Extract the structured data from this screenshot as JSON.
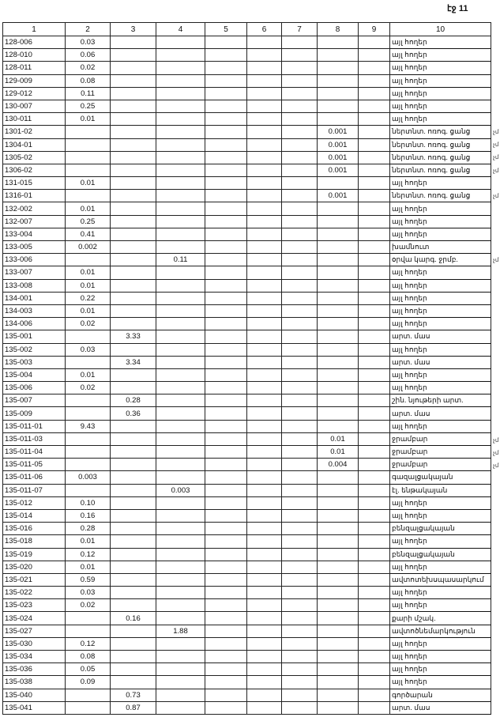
{
  "page_label": "էջ 11",
  "columns": [
    "1",
    "2",
    "3",
    "4",
    "5",
    "6",
    "7",
    "8",
    "9",
    "10"
  ],
  "rows": [
    {
      "c": [
        "128-006",
        "0.03",
        "",
        "",
        "",
        "",
        "",
        "",
        "",
        "այլ հողեր"
      ]
    },
    {
      "c": [
        "128-010",
        "0.06",
        "",
        "",
        "",
        "",
        "",
        "",
        "",
        "այլ հողեր"
      ]
    },
    {
      "c": [
        "128-011",
        "0.02",
        "",
        "",
        "",
        "",
        "",
        "",
        "",
        "այլ հողեր"
      ]
    },
    {
      "c": [
        "129-009",
        "0.08",
        "",
        "",
        "",
        "",
        "",
        "",
        "",
        "այլ հողեր"
      ]
    },
    {
      "c": [
        "129-012",
        "0.11",
        "",
        "",
        "",
        "",
        "",
        "",
        "",
        "այլ հողեր"
      ]
    },
    {
      "c": [
        "130-007",
        "0.25",
        "",
        "",
        "",
        "",
        "",
        "",
        "",
        "այլ հողեր"
      ]
    },
    {
      "c": [
        "130-011",
        "0.01",
        "",
        "",
        "",
        "",
        "",
        "",
        "",
        "այլ հողեր"
      ]
    },
    {
      "c": [
        "1301-02",
        "",
        "",
        "",
        "",
        "",
        "",
        "0.001",
        "",
        "ներտնտ. ոռոգ. ցանց"
      ],
      "note": "չմ"
    },
    {
      "c": [
        "1304-01",
        "",
        "",
        "",
        "",
        "",
        "",
        "0.001",
        "",
        "ներտնտ. ոռոգ. ցանց"
      ],
      "note": "չմ"
    },
    {
      "c": [
        "1305-02",
        "",
        "",
        "",
        "",
        "",
        "",
        "0.001",
        "",
        "ներտնտ. ոռոգ. ցանց"
      ],
      "note": "չմ"
    },
    {
      "c": [
        "1306-02",
        "",
        "",
        "",
        "",
        "",
        "",
        "0.001",
        "",
        "ներտնտ. ոռոգ. ցանց"
      ],
      "note": "չմ"
    },
    {
      "c": [
        "131-015",
        "0.01",
        "",
        "",
        "",
        "",
        "",
        "",
        "",
        "այլ հողեր"
      ]
    },
    {
      "c": [
        "1316-01",
        "",
        "",
        "",
        "",
        "",
        "",
        "0.001",
        "",
        "ներտնտ. ոռոգ. ցանց"
      ],
      "note": "չմ"
    },
    {
      "c": [
        "132-002",
        "0.01",
        "",
        "",
        "",
        "",
        "",
        "",
        "",
        "այլ հողեր"
      ]
    },
    {
      "c": [
        "132-007",
        "0.25",
        "",
        "",
        "",
        "",
        "",
        "",
        "",
        "այլ հողեր"
      ]
    },
    {
      "c": [
        "133-004",
        "0.41",
        "",
        "",
        "",
        "",
        "",
        "",
        "",
        "այլ հողեր"
      ]
    },
    {
      "c": [
        "133-005",
        "0.002",
        "",
        "",
        "",
        "",
        "",
        "",
        "",
        "խամնուտ"
      ]
    },
    {
      "c": [
        "133-006",
        "",
        "",
        "0.11",
        "",
        "",
        "",
        "",
        "",
        "օրվա կարգ. ջրմբ."
      ],
      "note": "չմ"
    },
    {
      "c": [
        "133-007",
        "0.01",
        "",
        "",
        "",
        "",
        "",
        "",
        "",
        "այլ հողեր"
      ]
    },
    {
      "c": [
        "133-008",
        "0.01",
        "",
        "",
        "",
        "",
        "",
        "",
        "",
        "այլ հողեր"
      ]
    },
    {
      "c": [
        "134-001",
        "0.22",
        "",
        "",
        "",
        "",
        "",
        "",
        "",
        "այլ հողեր"
      ]
    },
    {
      "c": [
        "134-003",
        "0.01",
        "",
        "",
        "",
        "",
        "",
        "",
        "",
        "այլ հողեր"
      ]
    },
    {
      "c": [
        "134-006",
        "0.02",
        "",
        "",
        "",
        "",
        "",
        "",
        "",
        "այլ հողեր"
      ]
    },
    {
      "c": [
        "135-001",
        "",
        "3.33",
        "",
        "",
        "",
        "",
        "",
        "",
        "արտ. մաս"
      ]
    },
    {
      "c": [
        "135-002",
        "0.03",
        "",
        "",
        "",
        "",
        "",
        "",
        "",
        "այլ հողեր"
      ]
    },
    {
      "c": [
        "135-003",
        "",
        "3.34",
        "",
        "",
        "",
        "",
        "",
        "",
        "արտ. մաս"
      ]
    },
    {
      "c": [
        "135-004",
        "0.01",
        "",
        "",
        "",
        "",
        "",
        "",
        "",
        "այլ հողեր"
      ]
    },
    {
      "c": [
        "135-006",
        "0.02",
        "",
        "",
        "",
        "",
        "",
        "",
        "",
        "այլ հողեր"
      ]
    },
    {
      "c": [
        "135-007",
        "",
        "0.28",
        "",
        "",
        "",
        "",
        "",
        "",
        "շին. նյութերի արտ."
      ]
    },
    {
      "c": [
        "135-009",
        "",
        "0.36",
        "",
        "",
        "",
        "",
        "",
        "",
        "արտ. մաս"
      ]
    },
    {
      "c": [
        "135-011-01",
        "9.43",
        "",
        "",
        "",
        "",
        "",
        "",
        "",
        "այլ հողեր"
      ]
    },
    {
      "c": [
        "135-011-03",
        "",
        "",
        "",
        "",
        "",
        "",
        "0.01",
        "",
        "ջրամբար"
      ],
      "note": "չմ"
    },
    {
      "c": [
        "135-011-04",
        "",
        "",
        "",
        "",
        "",
        "",
        "0.01",
        "",
        "ջրամբար"
      ],
      "note": "չմ"
    },
    {
      "c": [
        "135-011-05",
        "",
        "",
        "",
        "",
        "",
        "",
        "0.004",
        "",
        "ջրամբար"
      ],
      "note": "չմ"
    },
    {
      "c": [
        "135-011-06",
        "0.003",
        "",
        "",
        "",
        "",
        "",
        "",
        "",
        "գազալցակայան"
      ]
    },
    {
      "c": [
        "135-011-07",
        "",
        "",
        "0.003",
        "",
        "",
        "",
        "",
        "",
        "էլ. ենթակայան"
      ]
    },
    {
      "c": [
        "135-012",
        "0.10",
        "",
        "",
        "",
        "",
        "",
        "",
        "",
        "այլ հողեր"
      ]
    },
    {
      "c": [
        "135-014",
        "0.16",
        "",
        "",
        "",
        "",
        "",
        "",
        "",
        "այլ հողեր"
      ]
    },
    {
      "c": [
        "135-016",
        "0.28",
        "",
        "",
        "",
        "",
        "",
        "",
        "",
        "բենզալցակայան"
      ]
    },
    {
      "c": [
        "135-018",
        "0.01",
        "",
        "",
        "",
        "",
        "",
        "",
        "",
        "այլ հողեր"
      ]
    },
    {
      "c": [
        "135-019",
        "0.12",
        "",
        "",
        "",
        "",
        "",
        "",
        "",
        "բենզալցակայան"
      ]
    },
    {
      "c": [
        "135-020",
        "0.01",
        "",
        "",
        "",
        "",
        "",
        "",
        "",
        "այլ հողեր"
      ]
    },
    {
      "c": [
        "135-021",
        "0.59",
        "",
        "",
        "",
        "",
        "",
        "",
        "",
        "ավտոտեխսպասարկում"
      ]
    },
    {
      "c": [
        "135-022",
        "0.03",
        "",
        "",
        "",
        "",
        "",
        "",
        "",
        "այլ հողեր"
      ]
    },
    {
      "c": [
        "135-023",
        "0.02",
        "",
        "",
        "",
        "",
        "",
        "",
        "",
        "այլ հողեր"
      ]
    },
    {
      "c": [
        "135-024",
        "",
        "0.16",
        "",
        "",
        "",
        "",
        "",
        "",
        "քարի մշակ."
      ]
    },
    {
      "c": [
        "135-027",
        "",
        "",
        "1.88",
        "",
        "",
        "",
        "",
        "",
        "ավտոծնեմարկություն"
      ]
    },
    {
      "c": [
        "135-030",
        "0.12",
        "",
        "",
        "",
        "",
        "",
        "",
        "",
        "այլ հողեր"
      ]
    },
    {
      "c": [
        "135-034",
        "0.08",
        "",
        "",
        "",
        "",
        "",
        "",
        "",
        "այլ հողեր"
      ]
    },
    {
      "c": [
        "135-036",
        "0.05",
        "",
        "",
        "",
        "",
        "",
        "",
        "",
        "այլ հողեր"
      ]
    },
    {
      "c": [
        "135-038",
        "0.09",
        "",
        "",
        "",
        "",
        "",
        "",
        "",
        "այլ հողեր"
      ]
    },
    {
      "c": [
        "135-040",
        "",
        "0.73",
        "",
        "",
        "",
        "",
        "",
        "",
        "գործարան"
      ]
    },
    {
      "c": [
        "135-041",
        "",
        "0.87",
        "",
        "",
        "",
        "",
        "",
        "",
        "արտ. մաս"
      ]
    }
  ]
}
